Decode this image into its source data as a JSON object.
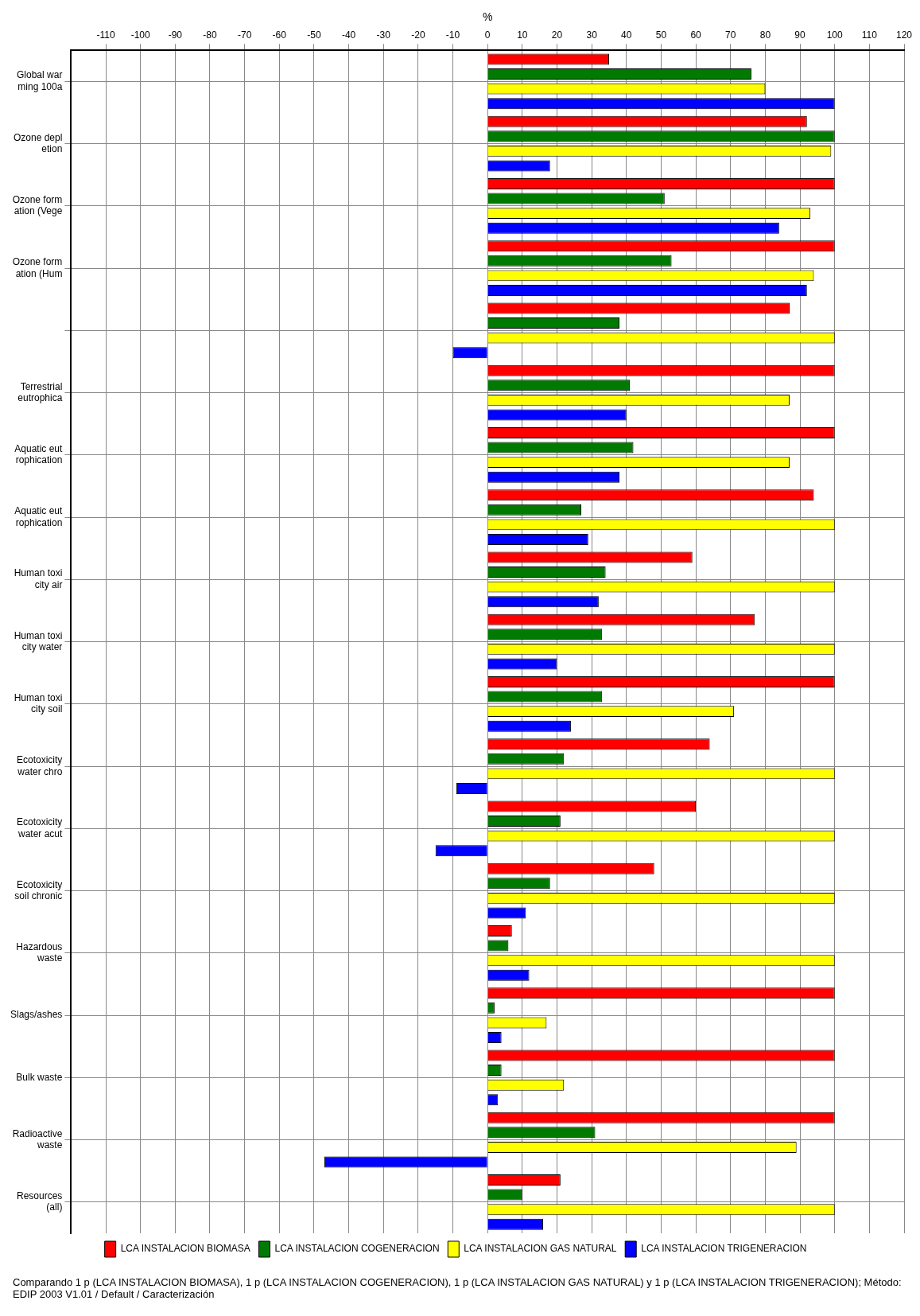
{
  "chart_data": {
    "type": "bar",
    "orientation": "horizontal",
    "xlabel": "%",
    "categories": [
      "Global war\nming 100a",
      "Ozone depl\netion",
      "Ozone form\nation (Vege",
      "Ozone form\nation (Hum",
      null,
      "Terrestrial\neutrophica",
      "Aquatic eut\nrophication",
      "Aquatic eut\nrophication",
      "Human toxi\ncity air",
      "Human toxi\ncity water",
      "Human toxi\ncity soil",
      "Ecotoxicity\nwater chro",
      "Ecotoxicity\nwater acut",
      "Ecotoxicity\nsoil chronic",
      "Hazardous\nwaste",
      "Slags/ashes",
      "Bulk waste",
      "Radioactive\nwaste",
      "Resources\n(all)"
    ],
    "series": [
      {
        "name": "LCA INSTALACION BIOMASA",
        "color": "#ff0000",
        "values": [
          35,
          92,
          100,
          100,
          87,
          100,
          100,
          94,
          59,
          77,
          100,
          64,
          60,
          48,
          7,
          100,
          100,
          100,
          21
        ]
      },
      {
        "name": "LCA INSTALACION COGENERACION",
        "color": "#007a00",
        "values": [
          76,
          100,
          51,
          53,
          38,
          41,
          42,
          27,
          34,
          33,
          33,
          22,
          21,
          18,
          6,
          2,
          4,
          31,
          10
        ]
      },
      {
        "name": "LCA INSTALACION GAS NATURAL",
        "color": "#ffff00",
        "values": [
          80,
          99,
          93,
          94,
          100,
          87,
          87,
          100,
          100,
          100,
          71,
          100,
          100,
          100,
          100,
          17,
          22,
          89,
          100
        ]
      },
      {
        "name": "LCA INSTALACION TRIGENERACION",
        "color": "#0000ff",
        "values": [
          100,
          18,
          84,
          92,
          -10,
          40,
          38,
          29,
          32,
          20,
          24,
          -9,
          -15,
          11,
          12,
          4,
          3,
          -47,
          16
        ]
      }
    ],
    "xlim": [
      -120,
      120
    ],
    "xticks": [
      -110,
      -100,
      -90,
      -80,
      -70,
      -60,
      -50,
      -40,
      -30,
      -20,
      -10,
      0,
      10,
      20,
      30,
      40,
      50,
      60,
      70,
      80,
      90,
      100,
      110,
      120
    ],
    "grid": true,
    "legend": "bottom",
    "annotations": [
      "Comparando 1 p (LCA INSTALACION BIOMASA), 1 p (LCA INSTALACION COGENERACION), 1 p (LCA INSTALACION GAS NATURAL) y 1 p (LCA INSTALACION TRIGENERACION); Método: EDIP 2003 V1.01 / Default / Caracterización"
    ]
  }
}
